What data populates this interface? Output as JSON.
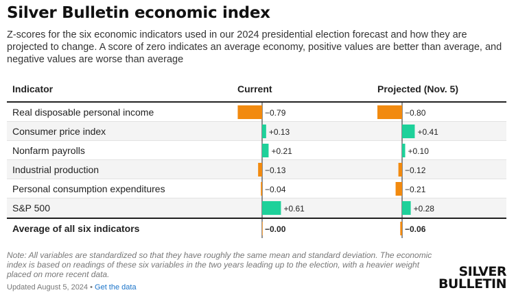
{
  "title": "Silver Bulletin economic index",
  "subtitle": "Z-scores for the six economic indicators used in our 2024 presidential election forecast and how they are projected to change. A score of zero indicates an average economy, positive values are better than average, and negative values are worse than average",
  "columns": {
    "indicator": "Indicator",
    "current": "Current",
    "projected": "Projected (Nov. 5)"
  },
  "colors": {
    "positive": "#1ed19a",
    "negative": "#f28a0f"
  },
  "chart_data": {
    "type": "table",
    "title": "Silver Bulletin economic index",
    "categories": [
      "Real disposable personal income",
      "Consumer price index",
      "Nonfarm payrolls",
      "Industrial production",
      "Personal consumption expenditures",
      "S&P 500"
    ],
    "series": [
      {
        "name": "Current",
        "values": [
          -0.79,
          0.13,
          0.21,
          -0.13,
          -0.04,
          0.61
        ],
        "labels": [
          "−0.79",
          "+0.13",
          "+0.21",
          "−0.13",
          "−0.04",
          "+0.61"
        ]
      },
      {
        "name": "Projected (Nov. 5)",
        "values": [
          -0.8,
          0.41,
          0.1,
          -0.12,
          -0.21,
          0.28
        ],
        "labels": [
          "−0.80",
          "+0.41",
          "+0.10",
          "−0.12",
          "−0.21",
          "+0.28"
        ]
      }
    ],
    "average": {
      "label": "Average of all six indicators",
      "values": [
        -0.001,
        -0.06
      ],
      "labels": [
        "−0.00",
        "−0.06"
      ]
    }
  },
  "note": "Note: All variables are standardized so that they have roughly the same mean and standard deviation. The economic index is based on readings of these six variables in the two years leading up to the election, with a heavier weight placed on more recent data.",
  "updated": "Updated August 5, 2024 •",
  "get_data": "Get the data",
  "logo": {
    "line1": "SILVER",
    "line2": "BULLETIN"
  }
}
